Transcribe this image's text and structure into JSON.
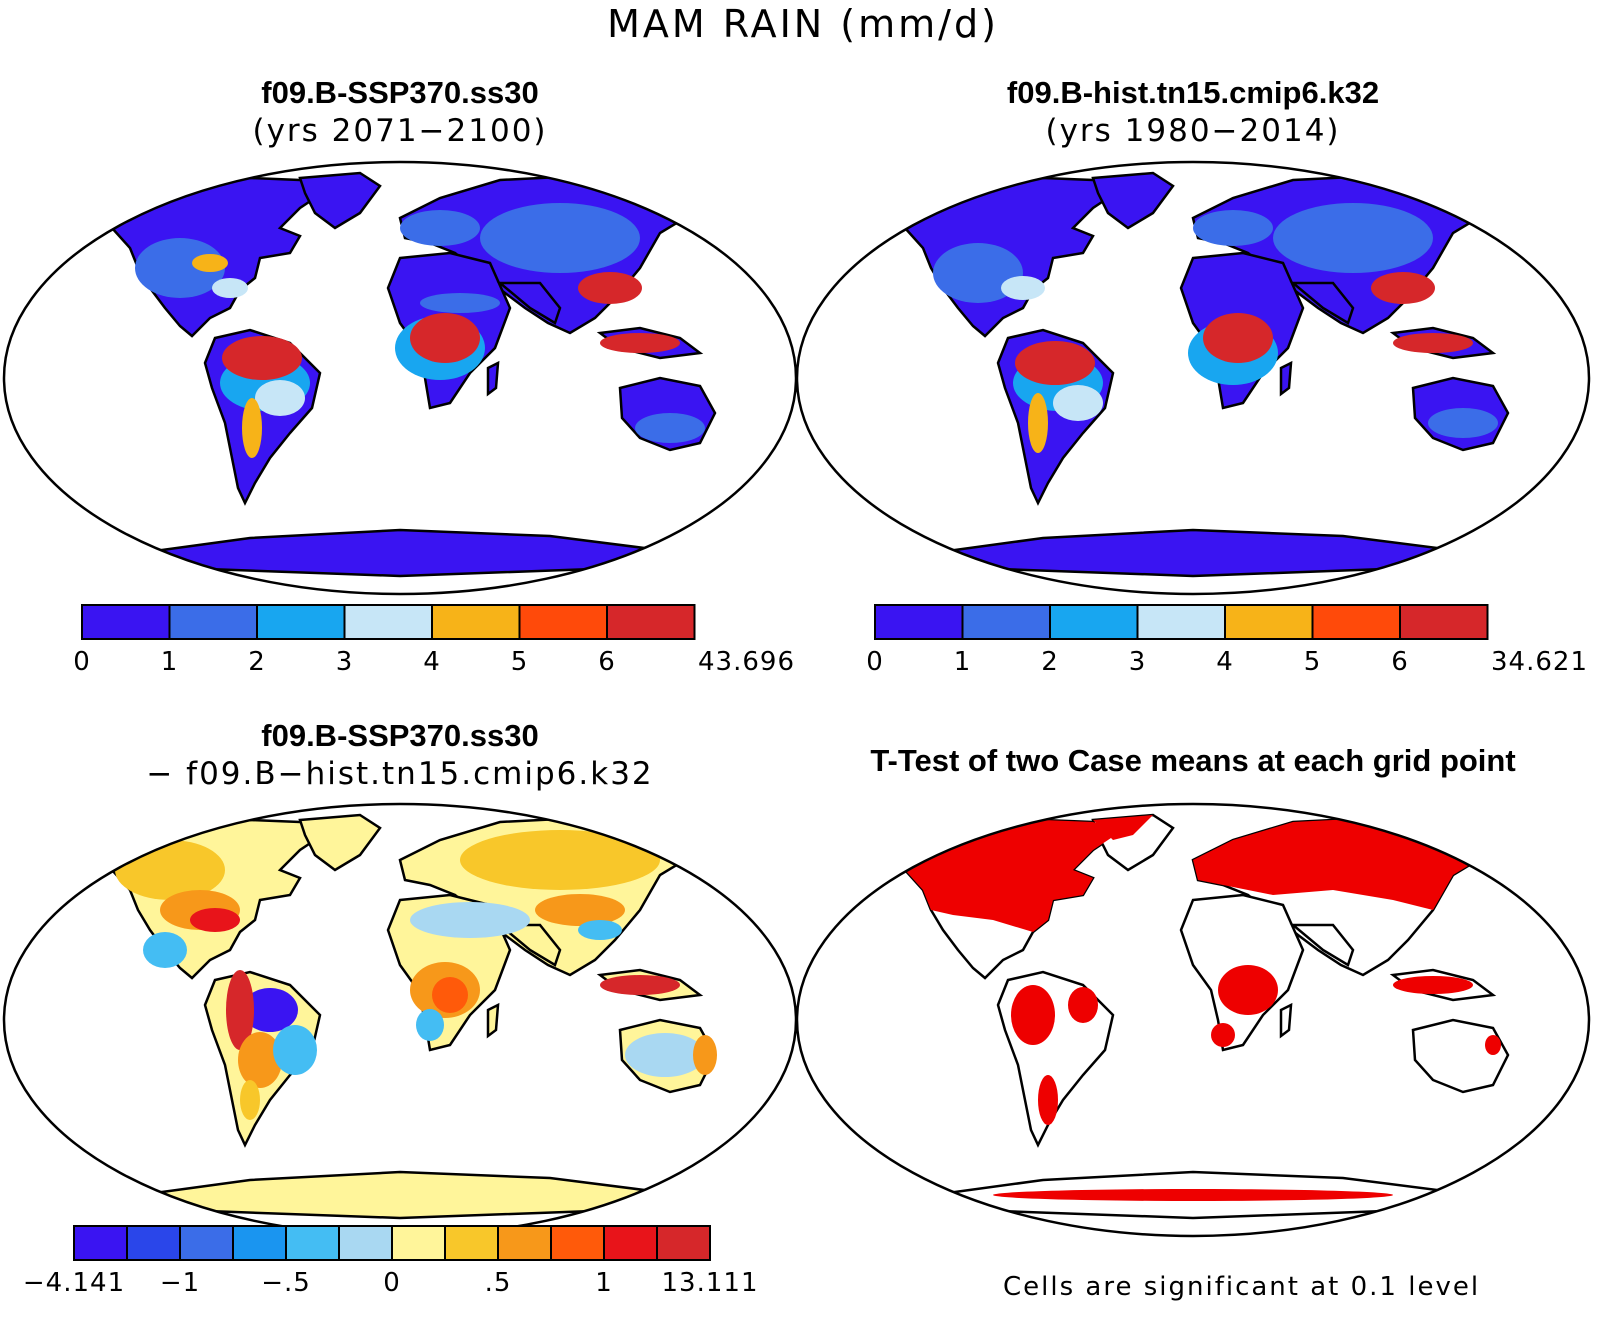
{
  "figure": {
    "title": "MAM RAIN (mm/d)"
  },
  "panels": [
    {
      "id": "top-left",
      "title": "f09.B-SSP370.ss30",
      "subtitle": "(yrs 2071−2100)",
      "colorbar": {
        "labels": [
          "0",
          "1",
          "2",
          "3",
          "4",
          "5",
          "6",
          "43.696"
        ],
        "colors": [
          "#3a14f2",
          "#3b6de8",
          "#18a6f0",
          "#c7e6f7",
          "#f7b318",
          "#ff4a0a",
          "#d6272a"
        ]
      }
    },
    {
      "id": "top-right",
      "title": "f09.B-hist.tn15.cmip6.k32",
      "subtitle": "(yrs 1980−2014)",
      "colorbar": {
        "labels": [
          "0",
          "1",
          "2",
          "3",
          "4",
          "5",
          "6",
          "34.621"
        ],
        "colors": [
          "#3a14f2",
          "#3b6de8",
          "#18a6f0",
          "#c7e6f7",
          "#f7b318",
          "#ff4a0a",
          "#d6272a"
        ]
      }
    },
    {
      "id": "bottom-left",
      "title": "f09.B-SSP370.ss30",
      "subtitle": "− f09.B−hist.tn15.cmip6.k32",
      "colorbar": {
        "labels": [
          "−4.141",
          "−1",
          "−.5",
          "0",
          ".5",
          "1",
          "13.111"
        ],
        "label_positions": [
          0,
          2,
          4,
          6,
          8,
          10,
          12
        ],
        "colors": [
          "#3a14f2",
          "#2a46ea",
          "#3b6de8",
          "#1a95f0",
          "#44bdf3",
          "#a9d8f2",
          "#fff59a",
          "#f8c72a",
          "#f7981a",
          "#ff5a0a",
          "#e8141a",
          "#d6272a"
        ]
      }
    },
    {
      "id": "bottom-right",
      "title": "T-Test of two Case means at each grid point",
      "note": "Cells are significant at 0.1 level",
      "significant_color": "#ee0000"
    }
  ]
}
